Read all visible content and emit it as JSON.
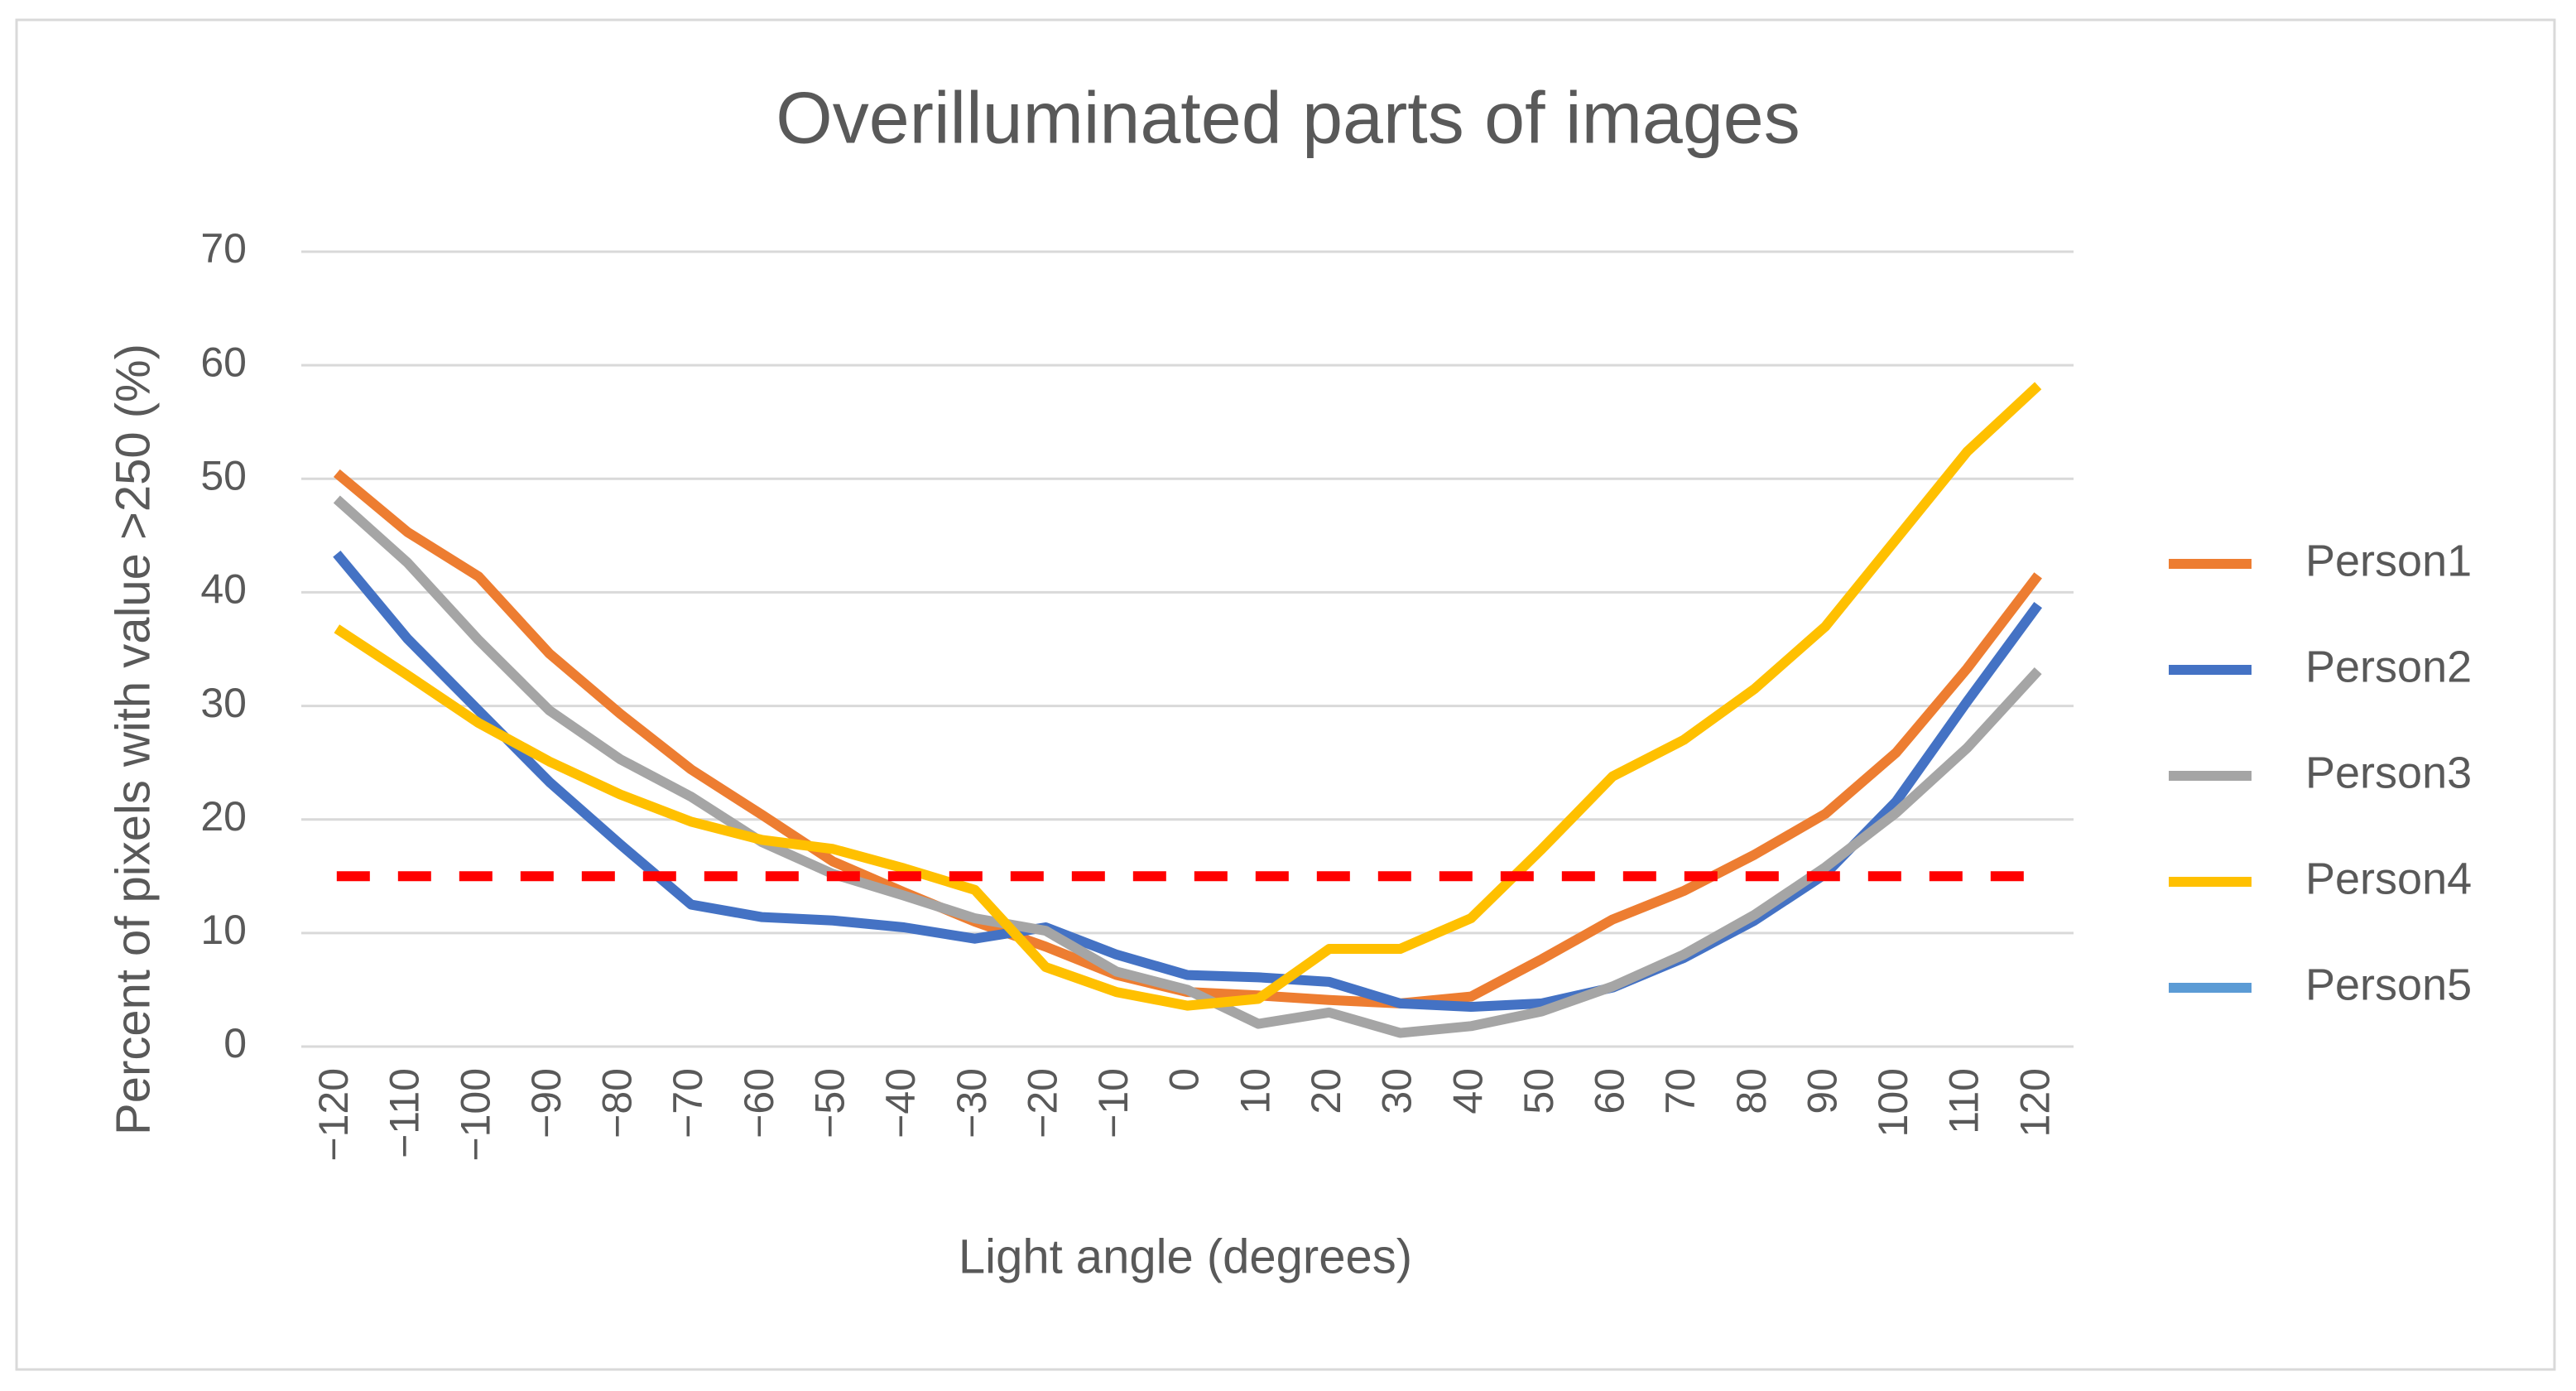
{
  "chart_data": {
    "type": "line",
    "title": "Overilluminated parts of images",
    "x_label": "Light angle (degrees)",
    "y_label": "Percent of pixels with value >250 (%)",
    "categories": [
      "−120",
      "−110",
      "−100",
      "−90",
      "−80",
      "−70",
      "−60",
      "−50",
      "−40",
      "−30",
      "−20",
      "−10",
      "0",
      "10",
      "20",
      "30",
      "40",
      "50",
      "60",
      "70",
      "80",
      "90",
      "100",
      "110",
      "120"
    ],
    "series": [
      {
        "name": "Person1",
        "color": "#ED7D31",
        "values": [
          50.5,
          45.3,
          41.4,
          34.6,
          29.3,
          24.4,
          20.4,
          16.3,
          13.6,
          11,
          8.8,
          6.3,
          4.8,
          4.5,
          4.1,
          3.8,
          4.4,
          7.7,
          11.2,
          13.7,
          16.9,
          20.5,
          25.9,
          33.3,
          41.5
        ]
      },
      {
        "name": "Person2",
        "color": "#4472C4",
        "values": [
          43.4,
          35.9,
          29.6,
          23.3,
          17.8,
          12.5,
          11.4,
          11.1,
          10.5,
          9.5,
          10.5,
          8.1,
          6.3,
          6.1,
          5.7,
          3.8,
          3.5,
          3.8,
          5.2,
          7.8,
          11.1,
          15.2,
          21.6,
          30.4,
          38.9
        ]
      },
      {
        "name": "Person3",
        "color": "#A5A5A5",
        "values": [
          48.2,
          42.6,
          35.8,
          29.6,
          25.3,
          22,
          18,
          15.2,
          13.3,
          11.3,
          10.2,
          6.6,
          5,
          2,
          3,
          1.2,
          1.8,
          3.1,
          5.3,
          8.1,
          11.6,
          15.8,
          20.6,
          26.3,
          33.1
        ]
      },
      {
        "name": "Person4",
        "color": "#FFC000",
        "values": [
          36.8,
          32.7,
          28.5,
          25.1,
          22.2,
          19.8,
          18.2,
          17.4,
          15.7,
          13.8,
          7,
          4.8,
          3.6,
          4.2,
          8.6,
          8.6,
          11.3,
          17.4,
          23.8,
          27,
          31.5,
          37,
          44.7,
          52.4,
          58.2
        ]
      },
      {
        "name": "Person5",
        "color": "#5B9BD5",
        "values": [
          null,
          null,
          null,
          null,
          null,
          null,
          null,
          null,
          null,
          null,
          null,
          null,
          null,
          null,
          null,
          null,
          null,
          null,
          null,
          null,
          null,
          null,
          null,
          null,
          null
        ]
      }
    ],
    "threshold": {
      "value": 15,
      "color": "#FF0000"
    },
    "ylim": [
      0,
      70
    ],
    "yticks": [
      0,
      10,
      20,
      30,
      40,
      50,
      60,
      70
    ],
    "grid": true,
    "legend": "right"
  }
}
